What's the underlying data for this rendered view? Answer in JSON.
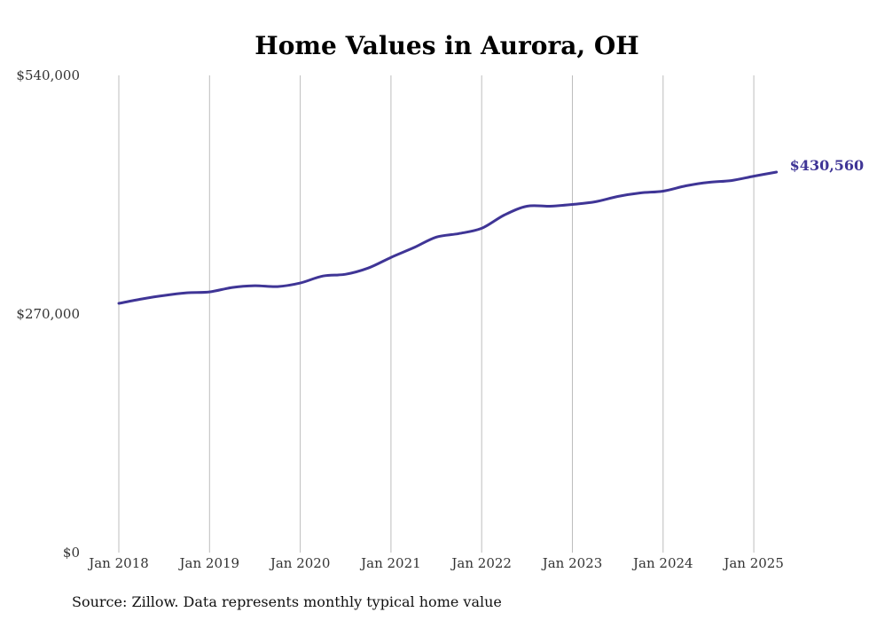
{
  "chart_data": {
    "type": "line",
    "title": "Home Values in Aurora, OH",
    "xlabel": "",
    "ylabel": "",
    "ylim": [
      0,
      540000
    ],
    "yticks": [
      {
        "value": 0,
        "label": "$0"
      },
      {
        "value": 270000,
        "label": "$270,000"
      },
      {
        "value": 540000,
        "label": "$540,000"
      }
    ],
    "xticks": [
      {
        "date": "2018-01",
        "label": "Jan 2018"
      },
      {
        "date": "2019-01",
        "label": "Jan 2019"
      },
      {
        "date": "2020-01",
        "label": "Jan 2020"
      },
      {
        "date": "2021-01",
        "label": "Jan 2021"
      },
      {
        "date": "2022-01",
        "label": "Jan 2022"
      },
      {
        "date": "2023-01",
        "label": "Jan 2023"
      },
      {
        "date": "2024-01",
        "label": "Jan 2024"
      },
      {
        "date": "2025-01",
        "label": "Jan 2025"
      }
    ],
    "xlim": [
      "2018-01",
      "2025-04"
    ],
    "grid": "vertical",
    "series": [
      {
        "color": "#3f3596",
        "points": [
          {
            "x": "2018-01",
            "y": 282000
          },
          {
            "x": "2018-04",
            "y": 287000
          },
          {
            "x": "2018-07",
            "y": 291000
          },
          {
            "x": "2018-10",
            "y": 294000
          },
          {
            "x": "2019-01",
            "y": 295000
          },
          {
            "x": "2019-04",
            "y": 300000
          },
          {
            "x": "2019-07",
            "y": 302000
          },
          {
            "x": "2019-10",
            "y": 301000
          },
          {
            "x": "2020-01",
            "y": 305000
          },
          {
            "x": "2020-04",
            "y": 313000
          },
          {
            "x": "2020-07",
            "y": 315000
          },
          {
            "x": "2020-10",
            "y": 322000
          },
          {
            "x": "2021-01",
            "y": 334000
          },
          {
            "x": "2021-04",
            "y": 345000
          },
          {
            "x": "2021-07",
            "y": 357000
          },
          {
            "x": "2021-10",
            "y": 361000
          },
          {
            "x": "2022-01",
            "y": 367000
          },
          {
            "x": "2022-04",
            "y": 382000
          },
          {
            "x": "2022-07",
            "y": 392000
          },
          {
            "x": "2022-10",
            "y": 392000
          },
          {
            "x": "2023-01",
            "y": 394000
          },
          {
            "x": "2023-04",
            "y": 397000
          },
          {
            "x": "2023-07",
            "y": 403000
          },
          {
            "x": "2023-10",
            "y": 407000
          },
          {
            "x": "2024-01",
            "y": 409000
          },
          {
            "x": "2024-04",
            "y": 415000
          },
          {
            "x": "2024-07",
            "y": 419000
          },
          {
            "x": "2024-10",
            "y": 421000
          },
          {
            "x": "2025-01",
            "y": 426000
          },
          {
            "x": "2025-04",
            "y": 430560
          }
        ],
        "end_label": "$430,560"
      }
    ],
    "source": "Source: Zillow. Data represents monthly typical home value"
  }
}
